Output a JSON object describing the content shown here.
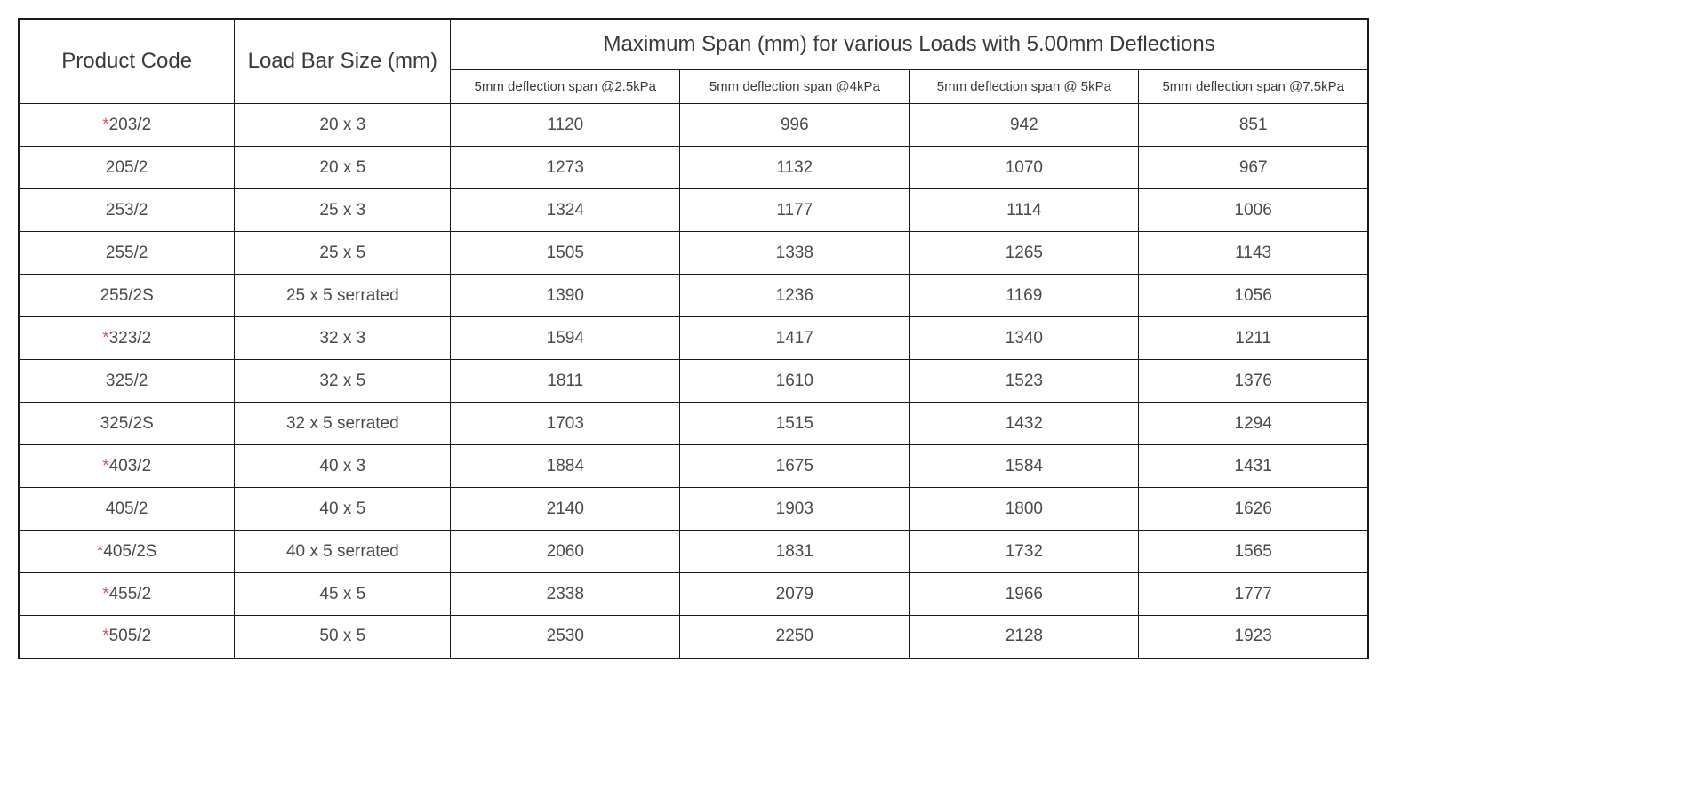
{
  "table": {
    "headers": {
      "product_code": "Product Code",
      "load_bar_size": "Load Bar Size (mm)",
      "main_span_header": "Maximum Span (mm) for various Loads with 5.00mm Deflections",
      "sub_headers": [
        "5mm deflection span @2.5kPa",
        "5mm deflection span @4kPa",
        "5mm deflection span @ 5kPa",
        "5mm deflection span @7.5kPa"
      ]
    },
    "rows": [
      {
        "asterisk": true,
        "code": "203/2",
        "size": "20 x 3",
        "spans": [
          "1120",
          "996",
          "942",
          "851"
        ]
      },
      {
        "asterisk": false,
        "code": "205/2",
        "size": "20 x 5",
        "spans": [
          "1273",
          "1132",
          "1070",
          "967"
        ]
      },
      {
        "asterisk": false,
        "code": "253/2",
        "size": "25 x 3",
        "spans": [
          "1324",
          "1177",
          "1114",
          "1006"
        ]
      },
      {
        "asterisk": false,
        "code": "255/2",
        "size": "25 x 5",
        "spans": [
          "1505",
          "1338",
          "1265",
          "1143"
        ]
      },
      {
        "asterisk": false,
        "code": "255/2S",
        "size": "25 x 5 serrated",
        "spans": [
          "1390",
          "1236",
          "1169",
          "1056"
        ]
      },
      {
        "asterisk": true,
        "code": "323/2",
        "size": "32 x 3",
        "spans": [
          "1594",
          "1417",
          "1340",
          "1211"
        ]
      },
      {
        "asterisk": false,
        "code": "325/2",
        "size": "32 x 5",
        "spans": [
          "1811",
          "1610",
          "1523",
          "1376"
        ]
      },
      {
        "asterisk": false,
        "code": "325/2S",
        "size": "32 x 5 serrated",
        "spans": [
          "1703",
          "1515",
          "1432",
          "1294"
        ]
      },
      {
        "asterisk": true,
        "code": "403/2",
        "size": "40 x 3",
        "spans": [
          "1884",
          "1675",
          "1584",
          "1431"
        ]
      },
      {
        "asterisk": false,
        "code": "405/2",
        "size": "40 x 5",
        "spans": [
          "2140",
          "1903",
          "1800",
          "1626"
        ]
      },
      {
        "asterisk": true,
        "code": "405/2S",
        "size": "40 x 5 serrated",
        "spans": [
          "2060",
          "1831",
          "1732",
          "1565"
        ]
      },
      {
        "asterisk": true,
        "code": "455/2",
        "size": "45 x 5",
        "spans": [
          "2338",
          "2079",
          "1966",
          "1777"
        ]
      },
      {
        "asterisk": true,
        "code": "505/2",
        "size": "50 x 5",
        "spans": [
          "2530",
          "2250",
          "2128",
          "1923"
        ]
      }
    ]
  },
  "styling": {
    "background_color": "#ffffff",
    "border_color": "#1a1a1a",
    "text_color": "#4a4a4a",
    "asterisk_color": "#d9534f",
    "header_fontsize": 24,
    "subheader_fontsize": 15,
    "cell_fontsize": 19,
    "col_widths_pct": [
      16,
      16,
      17,
      17,
      17,
      17
    ]
  }
}
